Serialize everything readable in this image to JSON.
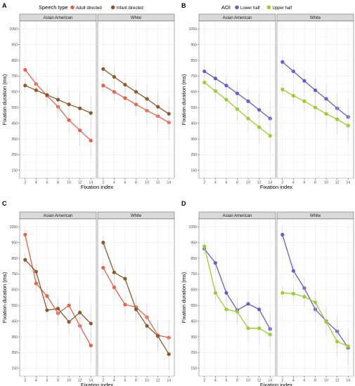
{
  "colors": {
    "adult": "#e8604c",
    "infant": "#8b5a2b",
    "lower": "#6a5acd",
    "upper": "#9acd32",
    "strip": "#d9d9d9",
    "grid": "#ebebeb",
    "error": "#cfcfcf"
  },
  "chart_data": [
    {
      "panel": "A",
      "type": "line",
      "legend": {
        "title": "Speech type",
        "entries": [
          "Adult directed",
          "Infant directed"
        ],
        "placement": "top"
      },
      "xlabel": "Fixation index",
      "ylabel": "Fixation duration (ms)",
      "yticks": [
        150,
        250,
        350,
        450,
        550,
        650,
        750,
        850,
        950,
        1050
      ],
      "xticks": [
        2,
        4,
        6,
        8,
        10,
        12,
        14
      ],
      "ylim": [
        100,
        1100
      ],
      "facets": [
        {
          "label": "Asian American",
          "series": [
            {
              "name": "Adult directed",
              "x": [
                2,
                4,
                6,
                8,
                10,
                12,
                14
              ],
              "values": [
                790,
                700,
                625,
                555,
                470,
                405,
                340
              ]
            },
            {
              "name": "Infant directed",
              "x": [
                2,
                4,
                6,
                8,
                10,
                12,
                14
              ],
              "values": [
                690,
                660,
                630,
                600,
                570,
                545,
                515
              ]
            }
          ]
        },
        {
          "label": "White",
          "series": [
            {
              "name": "Adult directed",
              "x": [
                2,
                4,
                6,
                8,
                10,
                12,
                14
              ],
              "values": [
                690,
                650,
                610,
                570,
                530,
                495,
                455
              ]
            },
            {
              "name": "Infant directed",
              "x": [
                2,
                4,
                6,
                8,
                10,
                12,
                14
              ],
              "values": [
                795,
                745,
                695,
                650,
                605,
                555,
                510
              ]
            }
          ]
        }
      ]
    },
    {
      "panel": "B",
      "type": "line",
      "legend": {
        "title": "AOI",
        "entries": [
          "Lower half",
          "Upper half"
        ],
        "placement": "top"
      },
      "xlabel": "Fixation index",
      "ylabel": "Fixation duration (ms)",
      "yticks": [
        150,
        250,
        350,
        450,
        550,
        650,
        750,
        850,
        950,
        1050
      ],
      "xticks": [
        2,
        4,
        6,
        8,
        10,
        12,
        14
      ],
      "ylim": [
        100,
        1100
      ],
      "facets": [
        {
          "label": "Asian American",
          "series": [
            {
              "name": "Lower half",
              "x": [
                2,
                4,
                6,
                8,
                10,
                12,
                14
              ],
              "values": [
                780,
                735,
                690,
                640,
                590,
                535,
                480
              ]
            },
            {
              "name": "Upper half",
              "x": [
                2,
                4,
                6,
                8,
                10,
                12,
                14
              ],
              "values": [
                710,
                655,
                600,
                540,
                480,
                425,
                370
              ]
            }
          ]
        },
        {
          "label": "White",
          "series": [
            {
              "name": "Lower half",
              "x": [
                2,
                4,
                6,
                8,
                10,
                12,
                14
              ],
              "values": [
                840,
                780,
                720,
                660,
                605,
                545,
                490
              ]
            },
            {
              "name": "Upper half",
              "x": [
                2,
                4,
                6,
                8,
                10,
                12,
                14
              ],
              "values": [
                665,
                625,
                590,
                550,
                510,
                475,
                435
              ]
            }
          ]
        }
      ]
    },
    {
      "panel": "C",
      "type": "line",
      "xlabel": "Fixation index",
      "ylabel": "Fixation duration (ms)",
      "yticks": [
        150,
        250,
        350,
        450,
        550,
        650,
        750,
        850,
        950,
        1050
      ],
      "xticks": [
        2,
        4,
        6,
        8,
        10,
        12,
        14
      ],
      "ylim": [
        100,
        1100
      ],
      "facets": [
        {
          "label": "Asian American",
          "series": [
            {
              "name": "Adult directed",
              "x": [
                2,
                4,
                6,
                8,
                10,
                12,
                14
              ],
              "values": [
                1000,
                690,
                610,
                500,
                550,
                420,
                295
              ]
            },
            {
              "name": "Infant directed",
              "x": [
                2,
                4,
                6,
                8,
                10,
                12,
                14
              ],
              "values": [
                840,
                765,
                520,
                530,
                445,
                505,
                435
              ]
            }
          ]
        },
        {
          "label": "White",
          "series": [
            {
              "name": "Adult directed",
              "x": [
                2,
                4,
                6,
                8,
                10,
                12,
                14
              ],
              "values": [
                790,
                665,
                555,
                540,
                475,
                360,
                345
              ]
            },
            {
              "name": "Infant directed",
              "x": [
                2,
                4,
                6,
                8,
                10,
                12,
                14
              ],
              "values": [
                950,
                760,
                720,
                525,
                420,
                355,
                240
              ]
            }
          ]
        }
      ]
    },
    {
      "panel": "D",
      "type": "line",
      "xlabel": "Fixation index",
      "ylabel": "Fixation duration (ms)",
      "yticks": [
        150,
        250,
        350,
        450,
        550,
        650,
        750,
        850,
        950,
        1050
      ],
      "xticks": [
        2,
        4,
        6,
        8,
        10,
        12,
        14
      ],
      "ylim": [
        100,
        1100
      ],
      "facets": [
        {
          "label": "Asian American",
          "series": [
            {
              "name": "Lower half",
              "x": [
                2,
                4,
                6,
                8,
                10,
                12,
                14
              ],
              "values": [
                910,
                820,
                630,
                520,
                560,
                525,
                400
              ]
            },
            {
              "name": "Upper half",
              "x": [
                2,
                4,
                6,
                8,
                10,
                12,
                14
              ],
              "values": [
                925,
                630,
                525,
                510,
                405,
                405,
                365
              ]
            }
          ]
        },
        {
          "label": "White",
          "series": [
            {
              "name": "Lower half",
              "x": [
                2,
                4,
                6,
                8,
                10,
                12,
                14
              ],
              "values": [
                1000,
                770,
                660,
                525,
                450,
                385,
                280
              ]
            },
            {
              "name": "Upper half",
              "x": [
                2,
                4,
                6,
                8,
                10,
                12,
                14
              ],
              "values": [
                630,
                625,
                605,
                570,
                445,
                320,
                290
              ]
            }
          ]
        }
      ]
    }
  ]
}
